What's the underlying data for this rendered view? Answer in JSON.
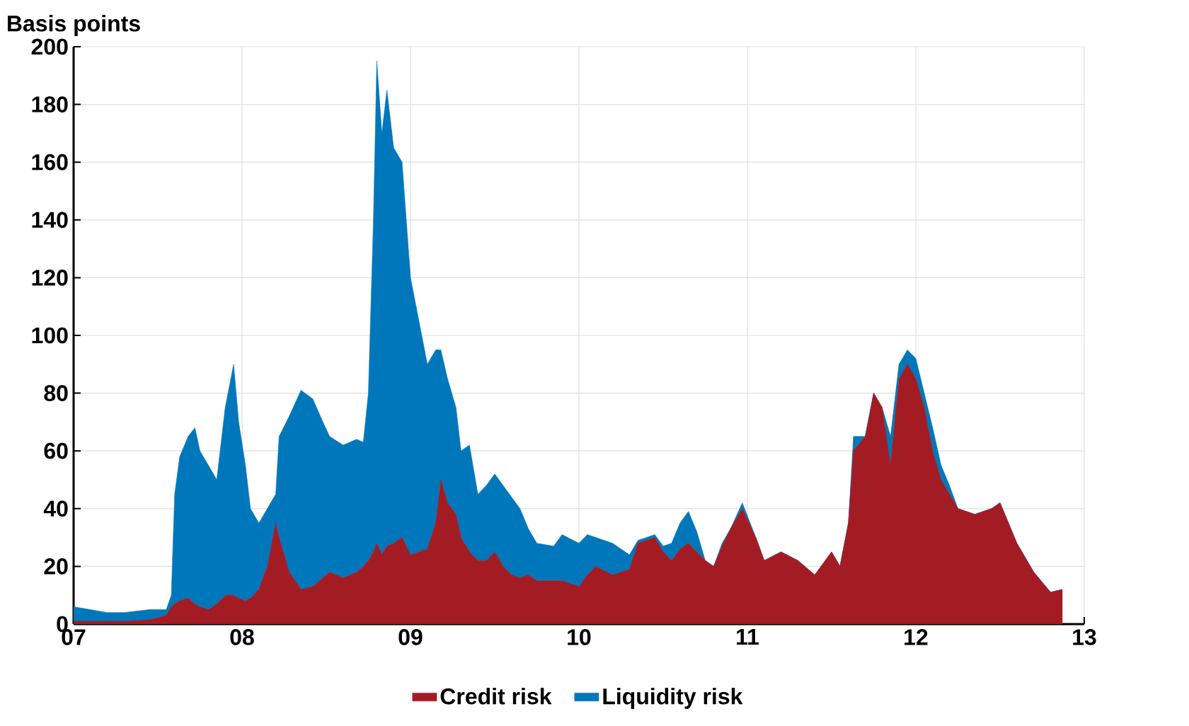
{
  "chart_data": {
    "type": "area",
    "ylabel": "Basis points",
    "stacked": true,
    "grid": true,
    "legend": "bottom",
    "xlim": [
      2007,
      2013
    ],
    "ylim": [
      0,
      200
    ],
    "xticks": [
      {
        "value": 2007,
        "label": "07"
      },
      {
        "value": 2008,
        "label": "08"
      },
      {
        "value": 2009,
        "label": "09"
      },
      {
        "value": 2010,
        "label": "10"
      },
      {
        "value": 2011,
        "label": "11"
      },
      {
        "value": 2012,
        "label": "12"
      },
      {
        "value": 2013,
        "label": "13"
      }
    ],
    "yticks": [
      0,
      20,
      40,
      60,
      80,
      100,
      120,
      140,
      160,
      180,
      200
    ],
    "x": [
      2007.0,
      2007.1,
      2007.2,
      2007.3,
      2007.45,
      2007.55,
      2007.58,
      2007.6,
      2007.63,
      2007.68,
      2007.72,
      2007.75,
      2007.8,
      2007.85,
      2007.9,
      2007.95,
      2007.98,
      2008.02,
      2008.05,
      2008.1,
      2008.15,
      2008.2,
      2008.22,
      2008.28,
      2008.35,
      2008.42,
      2008.48,
      2008.52,
      2008.6,
      2008.68,
      2008.72,
      2008.75,
      2008.78,
      2008.8,
      2008.83,
      2008.86,
      2008.9,
      2008.95,
      2009.0,
      2009.05,
      2009.1,
      2009.15,
      2009.18,
      2009.22,
      2009.27,
      2009.3,
      2009.35,
      2009.4,
      2009.45,
      2009.5,
      2009.55,
      2009.6,
      2009.65,
      2009.7,
      2009.75,
      2009.85,
      2009.9,
      2010.0,
      2010.05,
      2010.1,
      2010.2,
      2010.3,
      2010.35,
      2010.45,
      2010.5,
      2010.55,
      2010.6,
      2010.65,
      2010.7,
      2010.75,
      2010.8,
      2010.85,
      2010.9,
      2010.97,
      2011.05,
      2011.1,
      2011.2,
      2011.3,
      2011.4,
      2011.5,
      2011.55,
      2011.6,
      2011.63,
      2011.7,
      2011.75,
      2011.8,
      2011.85,
      2011.9,
      2011.95,
      2012.0,
      2012.05,
      2012.1,
      2012.15,
      2012.2,
      2012.25,
      2012.35,
      2012.45,
      2012.5,
      2012.55,
      2012.6,
      2012.7,
      2012.8,
      2012.87
    ],
    "series": [
      {
        "name": "Credit risk",
        "color": "#a31c24",
        "values": [
          1,
          1,
          1,
          1,
          1.5,
          3,
          6,
          7,
          8,
          9,
          7,
          6,
          5,
          7,
          10,
          10,
          9,
          8,
          9,
          12,
          20,
          35,
          30,
          18,
          12,
          13,
          16,
          18,
          16,
          18,
          20,
          22,
          25,
          28,
          24,
          27,
          28,
          30,
          24,
          25,
          26,
          35,
          50,
          42,
          38,
          30,
          25,
          22,
          22,
          25,
          20,
          17,
          16,
          17,
          15,
          15,
          15,
          13,
          17,
          20,
          17,
          19,
          28,
          30,
          25,
          22,
          26,
          28,
          25,
          22,
          20,
          27,
          33,
          40,
          30,
          22,
          25,
          22,
          17,
          25,
          20,
          35,
          60,
          65,
          80,
          75,
          55,
          85,
          90,
          85,
          75,
          60,
          50,
          45,
          40,
          38,
          40,
          42,
          35,
          28,
          18,
          11,
          12
        ]
      },
      {
        "name": "Liquidity risk",
        "color": "#0077bb",
        "values": [
          5,
          4,
          3,
          3,
          3.5,
          2,
          4,
          38,
          50,
          56,
          61,
          54,
          50,
          43,
          65,
          80,
          61,
          47,
          31,
          23,
          20,
          10,
          35,
          54,
          69,
          65,
          54,
          47,
          46,
          46,
          43,
          58,
          115,
          167,
          146,
          158,
          137,
          130,
          96,
          80,
          64,
          60,
          45,
          43,
          37,
          30,
          37,
          23,
          26,
          27,
          28,
          27,
          24,
          16,
          13,
          12,
          16,
          15,
          14,
          10,
          11,
          5,
          1,
          1,
          2,
          6,
          9,
          11,
          7,
          0,
          0,
          1,
          0,
          2,
          0,
          0,
          0,
          0,
          0,
          0,
          0,
          0,
          5,
          0,
          0,
          0,
          10,
          5,
          5,
          7,
          5,
          8,
          5,
          3,
          0,
          0,
          0,
          0,
          0,
          0,
          0,
          0,
          0
        ]
      }
    ]
  }
}
